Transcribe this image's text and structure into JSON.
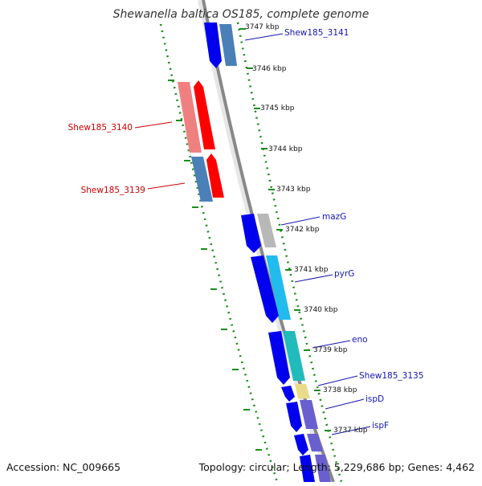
{
  "title": "Shewanella baltica OS185, complete genome",
  "footer": {
    "accession": "Accession: NC_009665",
    "summary": "Topology: circular; Length: 5,229,686 bp; Genes: 4,462"
  },
  "colors": {
    "forward": "#0000ee",
    "reverse": "#ff0000",
    "forward_label": "#1515b0",
    "reverse_label": "#cc0000",
    "backbone": "#888888",
    "ruler": "#1f8a1f"
  },
  "kbp_labels": [
    "3747 kbp",
    "3746 kbp",
    "3745 kbp",
    "3744 kbp",
    "3743 kbp",
    "3742 kbp",
    "3741 kbp",
    "3740 kbp",
    "3739 kbp",
    "3738 kbp",
    "3737 kbp"
  ],
  "gene_labels": [
    {
      "text": "Shew185_3141",
      "strand": "forward"
    },
    {
      "text": "Shew185_3140",
      "strand": "reverse"
    },
    {
      "text": "Shew185_3139",
      "strand": "reverse"
    },
    {
      "text": "mazG",
      "strand": "forward"
    },
    {
      "text": "pyrG",
      "strand": "forward"
    },
    {
      "text": "eno",
      "strand": "forward"
    },
    {
      "text": "Shew185_3135",
      "strand": "forward"
    },
    {
      "text": "ispD",
      "strand": "forward"
    },
    {
      "text": "ispF",
      "strand": "forward"
    }
  ]
}
